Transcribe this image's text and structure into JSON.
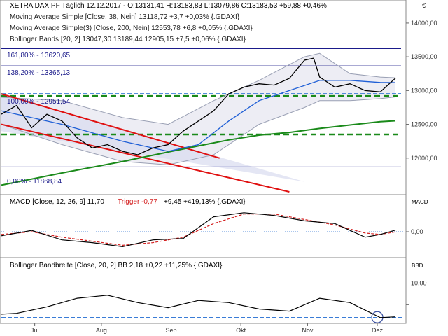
{
  "header": {
    "main_title": "XETRA DAX PF Täglich   12.12.2017 - O:13131,41 H:13183,83 L:13079,86 C:13183,53 +59,88 +0,46%",
    "ma38": "Moving Average Simple [Close, 38, Nein]  13118,72 +3,7 +0,03% {.GDAXI}",
    "ma200": "Moving Average Simple(3) [Close, 200, Nein]  12553,78 +6,8 +0,05% {.GDAXI}",
    "boll": "Bollinger Bands [20, 2]  13047,30  13189,44  12905,15  +7,5 +0,06% {.GDAXI}",
    "currency": "€"
  },
  "macd_header": {
    "label": "MACD [Close, 12, 26, 9] 11,70",
    "trigger": "Trigger -0,77",
    "rest": "+9,45 +419,13% {.GDAXI}",
    "axis_title": "MACD"
  },
  "bbw_header": {
    "label": "Bollinger Bandbreite [Close, 20, 2] BB 2,18 +0,22 +11,25% {.GDAXI}",
    "axis_title": "BBD"
  },
  "fib_labels": [
    "161,80% - 13620,65",
    "138,20% - 13365,13",
    "100,00% - 12951,54",
    "0,00% - 11868,84"
  ],
  "colors": {
    "price": "#000000",
    "ma38": "#1f5fd6",
    "ma200": "#1a8a1a",
    "bollinger": "#9aa0b4",
    "channel": "#e01010",
    "fib_line": "#1a1a8a",
    "support": "#1a8a1a",
    "macd_signal": "#d42020",
    "zero_line": "#1e6ad0",
    "shade": "#d9dcef"
  },
  "chart_data": [
    {
      "type": "line",
      "title": "XETRA DAX PF Täglich",
      "ylabel": "€",
      "ylim": [
        11500,
        14300
      ],
      "y_ticks": [
        12000,
        12500,
        13000,
        13500,
        14000
      ],
      "y_tick_labels": [
        "12000,00",
        "12500,00",
        "13000,00",
        "13500,00",
        "14000,00"
      ],
      "x_tick_labels": [
        "Jul",
        "Aug",
        "Sep",
        "Okt",
        "Nov",
        "Dez"
      ],
      "x_tick_index": [
        11,
        33,
        56,
        79,
        101,
        124
      ],
      "series": [
        {
          "name": "XETRA DAX PF",
          "x": [
            0,
            5,
            10,
            15,
            20,
            25,
            30,
            35,
            40,
            45,
            50,
            55,
            60,
            65,
            70,
            75,
            80,
            85,
            90,
            95,
            100,
            103,
            105,
            110,
            115,
            120,
            125,
            130
          ],
          "values": [
            12650,
            12780,
            12450,
            12650,
            12550,
            12300,
            12150,
            12200,
            12100,
            12050,
            12150,
            12200,
            12400,
            12550,
            12700,
            12950,
            13050,
            13100,
            13080,
            13180,
            13450,
            13480,
            13200,
            13050,
            13100,
            13000,
            12980,
            13183
          ]
        },
        {
          "name": "Moving Average Simple [Close, 38, Nein]",
          "x": [
            0,
            20,
            40,
            55,
            65,
            75,
            85,
            95,
            105,
            115,
            125,
            130
          ],
          "values": [
            12700,
            12500,
            12250,
            12100,
            12200,
            12550,
            12850,
            13000,
            13150,
            13150,
            13120,
            13118
          ]
        },
        {
          "name": "Moving Average Simple(3) [Close, 200, Nein]",
          "x": [
            0,
            20,
            40,
            55,
            65,
            75,
            85,
            95,
            105,
            115,
            125,
            130
          ],
          "values": [
            11600,
            11780,
            11950,
            12090,
            12180,
            12270,
            12340,
            12380,
            12440,
            12490,
            12540,
            12553
          ]
        },
        {
          "name": "Bollinger Bands [20, 2]",
          "x": [
            0,
            20,
            40,
            55,
            70,
            85,
            100,
            105,
            115,
            125,
            130
          ],
          "upper": [
            12900,
            12850,
            12600,
            12500,
            12850,
            13150,
            13500,
            13550,
            13250,
            13200,
            13189
          ],
          "lower": [
            12500,
            12200,
            11950,
            11900,
            12050,
            12500,
            12750,
            12850,
            12850,
            12880,
            12905
          ]
        }
      ],
      "horizontal_lines": [
        13620.65,
        13365.13,
        12951.54,
        11868.84,
        12920,
        12950,
        12350
      ]
    },
    {
      "type": "line",
      "title": "MACD [Close, 12, 26, 9]",
      "ylabel": "MACD",
      "y_ticks": [
        0
      ],
      "y_tick_labels": [
        "0,00"
      ],
      "series": [
        {
          "name": "MACD",
          "x": [
            0,
            10,
            20,
            30,
            40,
            50,
            60,
            70,
            80,
            90,
            100,
            110,
            120,
            125,
            130
          ],
          "values": [
            -30,
            10,
            -60,
            -80,
            -110,
            -60,
            -50,
            110,
            140,
            120,
            80,
            60,
            -40,
            -20,
            12
          ]
        },
        {
          "name": "Trigger",
          "x": [
            0,
            10,
            20,
            30,
            40,
            50,
            60,
            70,
            80,
            90,
            100,
            110,
            120,
            125,
            130
          ],
          "values": [
            -20,
            0,
            -40,
            -70,
            -100,
            -80,
            -40,
            60,
            130,
            130,
            90,
            50,
            -10,
            -20,
            -1
          ]
        }
      ]
    },
    {
      "type": "line",
      "title": "Bollinger Bandbreite [Close, 20, 2]",
      "ylabel": "BBD",
      "y_ticks": [
        5,
        10
      ],
      "y_tick_labels": [
        "",
        "10,00"
      ],
      "series": [
        {
          "name": "BB",
          "x": [
            0,
            5,
            15,
            25,
            35,
            45,
            55,
            65,
            75,
            85,
            95,
            105,
            115,
            125,
            130
          ],
          "values": [
            2.8,
            3.0,
            4.5,
            6.5,
            7.2,
            5.5,
            4.3,
            6.0,
            5.5,
            4.0,
            3.5,
            6.5,
            5.5,
            2.0,
            2.18
          ]
        }
      ]
    }
  ]
}
